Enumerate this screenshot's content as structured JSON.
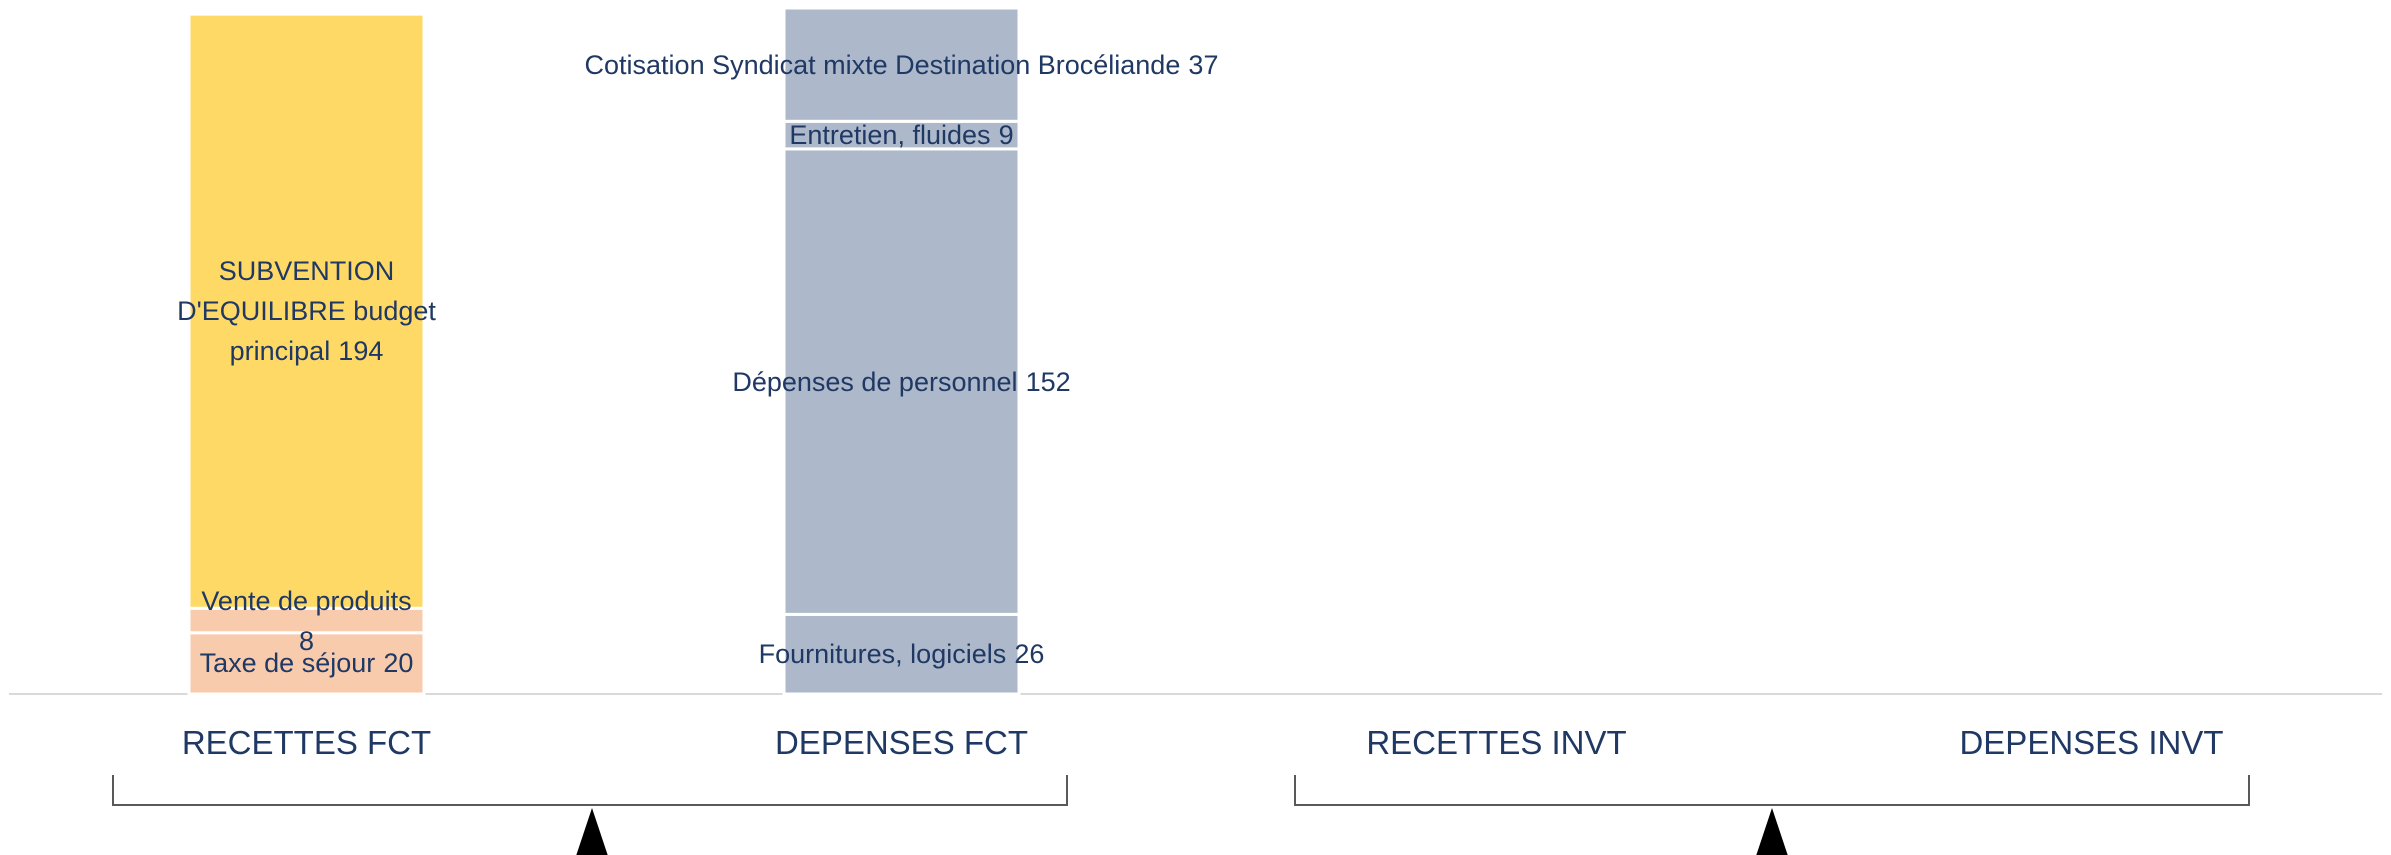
{
  "chart_data": {
    "type": "bar",
    "stacked": true,
    "categories": [
      "RECETTES FCT",
      "DEPENSES FCT",
      "RECETTES INVT",
      "DEPENSES INVT"
    ],
    "series": [
      {
        "name": "Taxe de séjour",
        "color": "#F8CBAD",
        "values": [
          20,
          null,
          null,
          null
        ]
      },
      {
        "name": "Vente de produits",
        "color": "#F8CBAD",
        "values": [
          8,
          null,
          null,
          null
        ]
      },
      {
        "name": "SUBVENTION D'EQUILIBRE budget principal",
        "color": "#FFD966",
        "values": [
          194,
          null,
          null,
          null
        ]
      },
      {
        "name": "Fournitures, logiciels",
        "color": "#ADB9CA",
        "values": [
          null,
          26,
          null,
          null
        ]
      },
      {
        "name": "Dépenses de personnel",
        "color": "#ADB9CA",
        "values": [
          null,
          152,
          null,
          null
        ]
      },
      {
        "name": "Entretien, fluides",
        "color": "#ADB9CA",
        "values": [
          null,
          9,
          null,
          null
        ]
      },
      {
        "name": "Cotisation Syndicat mixte Destination Brocéliande",
        "color": "#ADB9CA",
        "values": [
          null,
          37,
          null,
          null
        ]
      }
    ]
  }
}
